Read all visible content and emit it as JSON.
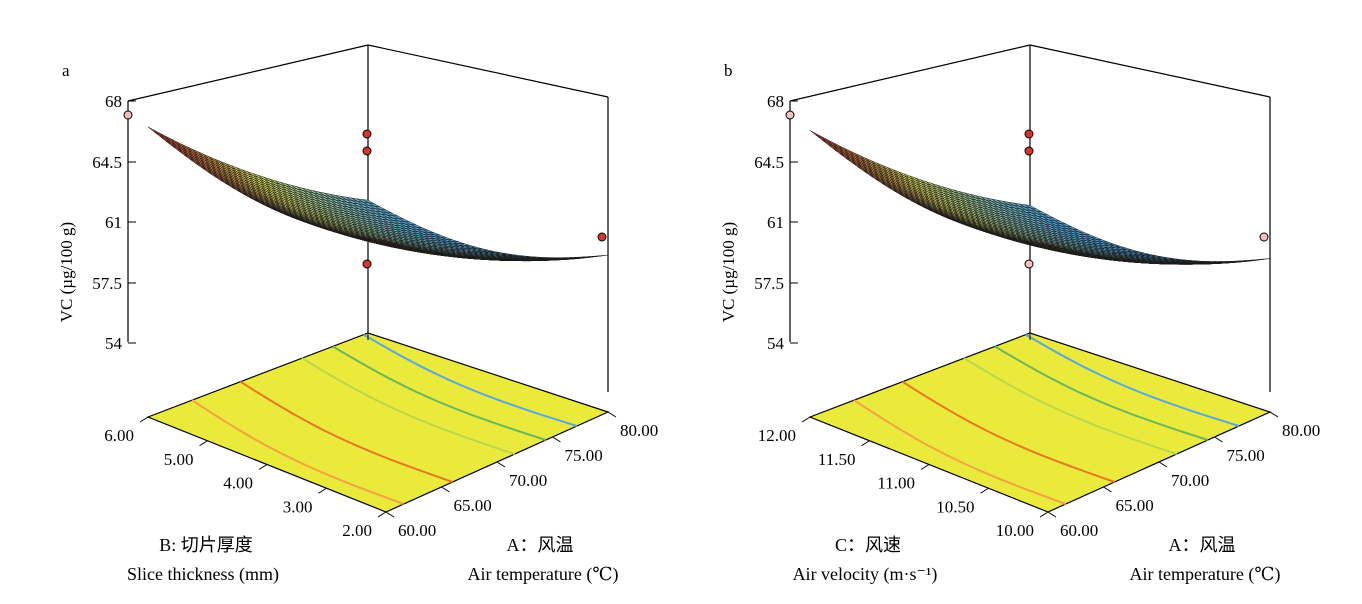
{
  "chart_data": [
    {
      "panel_label": "a",
      "type": "surface3d",
      "z_axis": {
        "label": "VC (µg/100 g)",
        "ticks": [
          "54",
          "57.5",
          "61",
          "64.5",
          "68"
        ],
        "range": [
          54,
          68
        ]
      },
      "x_axis": {
        "label_factor": "B: 切片厚度",
        "label_name": "Slice thickness (mm)",
        "ticks": [
          "2.00",
          "3.00",
          "4.00",
          "5.00",
          "6.00"
        ],
        "range": [
          2,
          6
        ]
      },
      "y_axis": {
        "label_factor": "A：风温",
        "label_name": "Air temperature (℃)",
        "ticks": [
          "60.00",
          "65.00",
          "70.00",
          "75.00",
          "80.00"
        ],
        "range": [
          60,
          80
        ]
      },
      "corner_values": {
        "x_max_y_min": 67.6,
        "x_max_y_max": 58.5,
        "x_min_y_min": 66.5,
        "x_min_y_max": 59.9
      },
      "design_points": [
        {
          "x": 6,
          "y": 60,
          "z": 67.6
        },
        {
          "x": 2,
          "y": 80,
          "z": 59.9
        },
        {
          "x": 4,
          "y": 70,
          "z": 58.5
        },
        {
          "x": 2,
          "y": 60,
          "z": 66.7
        },
        {
          "x": 2,
          "y": 60,
          "z": 65.3
        }
      ],
      "colors": {
        "high": "#d8352a",
        "mid": "#e8e85a",
        "low": "#4aa3df"
      },
      "contour_colors": [
        "#f4a340",
        "#e8781e",
        "#b8d84a",
        "#6ab85a",
        "#58a8e0"
      ]
    },
    {
      "panel_label": "b",
      "type": "surface3d",
      "z_axis": {
        "label": "VC (µg/100 g)",
        "ticks": [
          "54",
          "57.5",
          "61",
          "64.5",
          "68"
        ],
        "range": [
          54,
          68
        ]
      },
      "x_axis": {
        "label_factor": "C：风速",
        "label_name": "Air velocity (m·s⁻¹)",
        "ticks": [
          "10.00",
          "10.50",
          "11.00",
          "11.50",
          "12.00"
        ],
        "range": [
          10,
          12
        ]
      },
      "y_axis": {
        "label_factor": "A：风温",
        "label_name": "Air temperature (℃)",
        "ticks": [
          "60.00",
          "65.00",
          "70.00",
          "75.00",
          "80.00"
        ],
        "range": [
          60,
          80
        ]
      },
      "corner_values": {
        "x_max_y_min": 67.4,
        "x_max_y_max": 58.2,
        "x_min_y_min": 66.3,
        "x_min_y_max": 59.7
      },
      "design_points": [
        {
          "x": 12,
          "y": 60,
          "z": 67.4
        },
        {
          "x": 10,
          "y": 80,
          "z": 59.7
        },
        {
          "x": 11,
          "y": 70,
          "z": 58.2
        },
        {
          "x": 10,
          "y": 60,
          "z": 66.7
        },
        {
          "x": 10,
          "y": 60,
          "z": 65.3
        }
      ],
      "colors": {
        "high": "#d8352a",
        "mid": "#e8e85a",
        "low": "#4aa3df"
      },
      "contour_colors": [
        "#f4a340",
        "#e8781e",
        "#b8d84a",
        "#6ab85a",
        "#58a8e0"
      ]
    }
  ]
}
